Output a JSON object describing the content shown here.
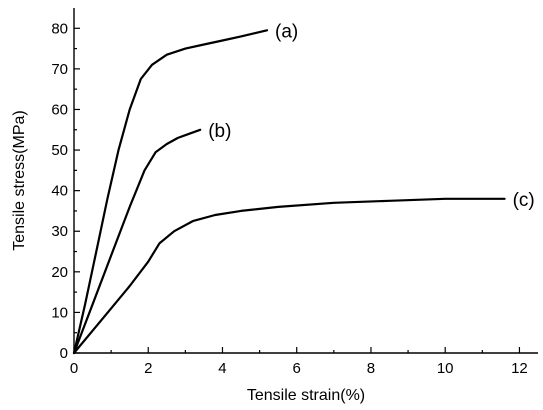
{
  "chart_data": {
    "type": "line",
    "xlabel": "Tensile strain(%)",
    "ylabel": "Tensile stress(MPa)",
    "xlim": [
      0,
      12.5
    ],
    "ylim": [
      0,
      85
    ],
    "xticks": [
      0,
      2,
      4,
      6,
      8,
      10,
      12
    ],
    "yticks": [
      0,
      10,
      20,
      30,
      40,
      50,
      60,
      70,
      80
    ],
    "xtick_labels": [
      "0",
      "2",
      "4",
      "6",
      "8",
      "10",
      "12"
    ],
    "ytick_labels": [
      "0",
      "10",
      "20",
      "30",
      "40",
      "50",
      "60",
      "70",
      "80"
    ],
    "grid": false,
    "series": [
      {
        "name": "(a)",
        "x": [
          0,
          0.3,
          0.6,
          0.9,
          1.2,
          1.5,
          1.8,
          2.1,
          2.5,
          3.0,
          3.5,
          4.0,
          4.5,
          5.2
        ],
        "y": [
          0,
          12,
          25,
          38,
          50,
          60,
          67.5,
          71,
          73.5,
          75,
          76,
          77,
          78,
          79.5
        ]
      },
      {
        "name": "(b)",
        "x": [
          0,
          0.5,
          1.0,
          1.5,
          1.9,
          2.2,
          2.5,
          2.8,
          3.1,
          3.4
        ],
        "y": [
          0,
          12,
          24,
          36,
          45,
          49.5,
          51.5,
          53,
          54,
          55
        ]
      },
      {
        "name": "(c)",
        "x": [
          0,
          0.5,
          1.0,
          1.5,
          2.0,
          2.3,
          2.7,
          3.2,
          3.8,
          4.5,
          5.5,
          7.0,
          8.5,
          10.0,
          11.6
        ],
        "y": [
          0,
          5.5,
          11,
          16.5,
          22.5,
          27,
          30,
          32.5,
          34,
          35,
          36,
          37,
          37.5,
          38,
          38
        ]
      }
    ]
  }
}
